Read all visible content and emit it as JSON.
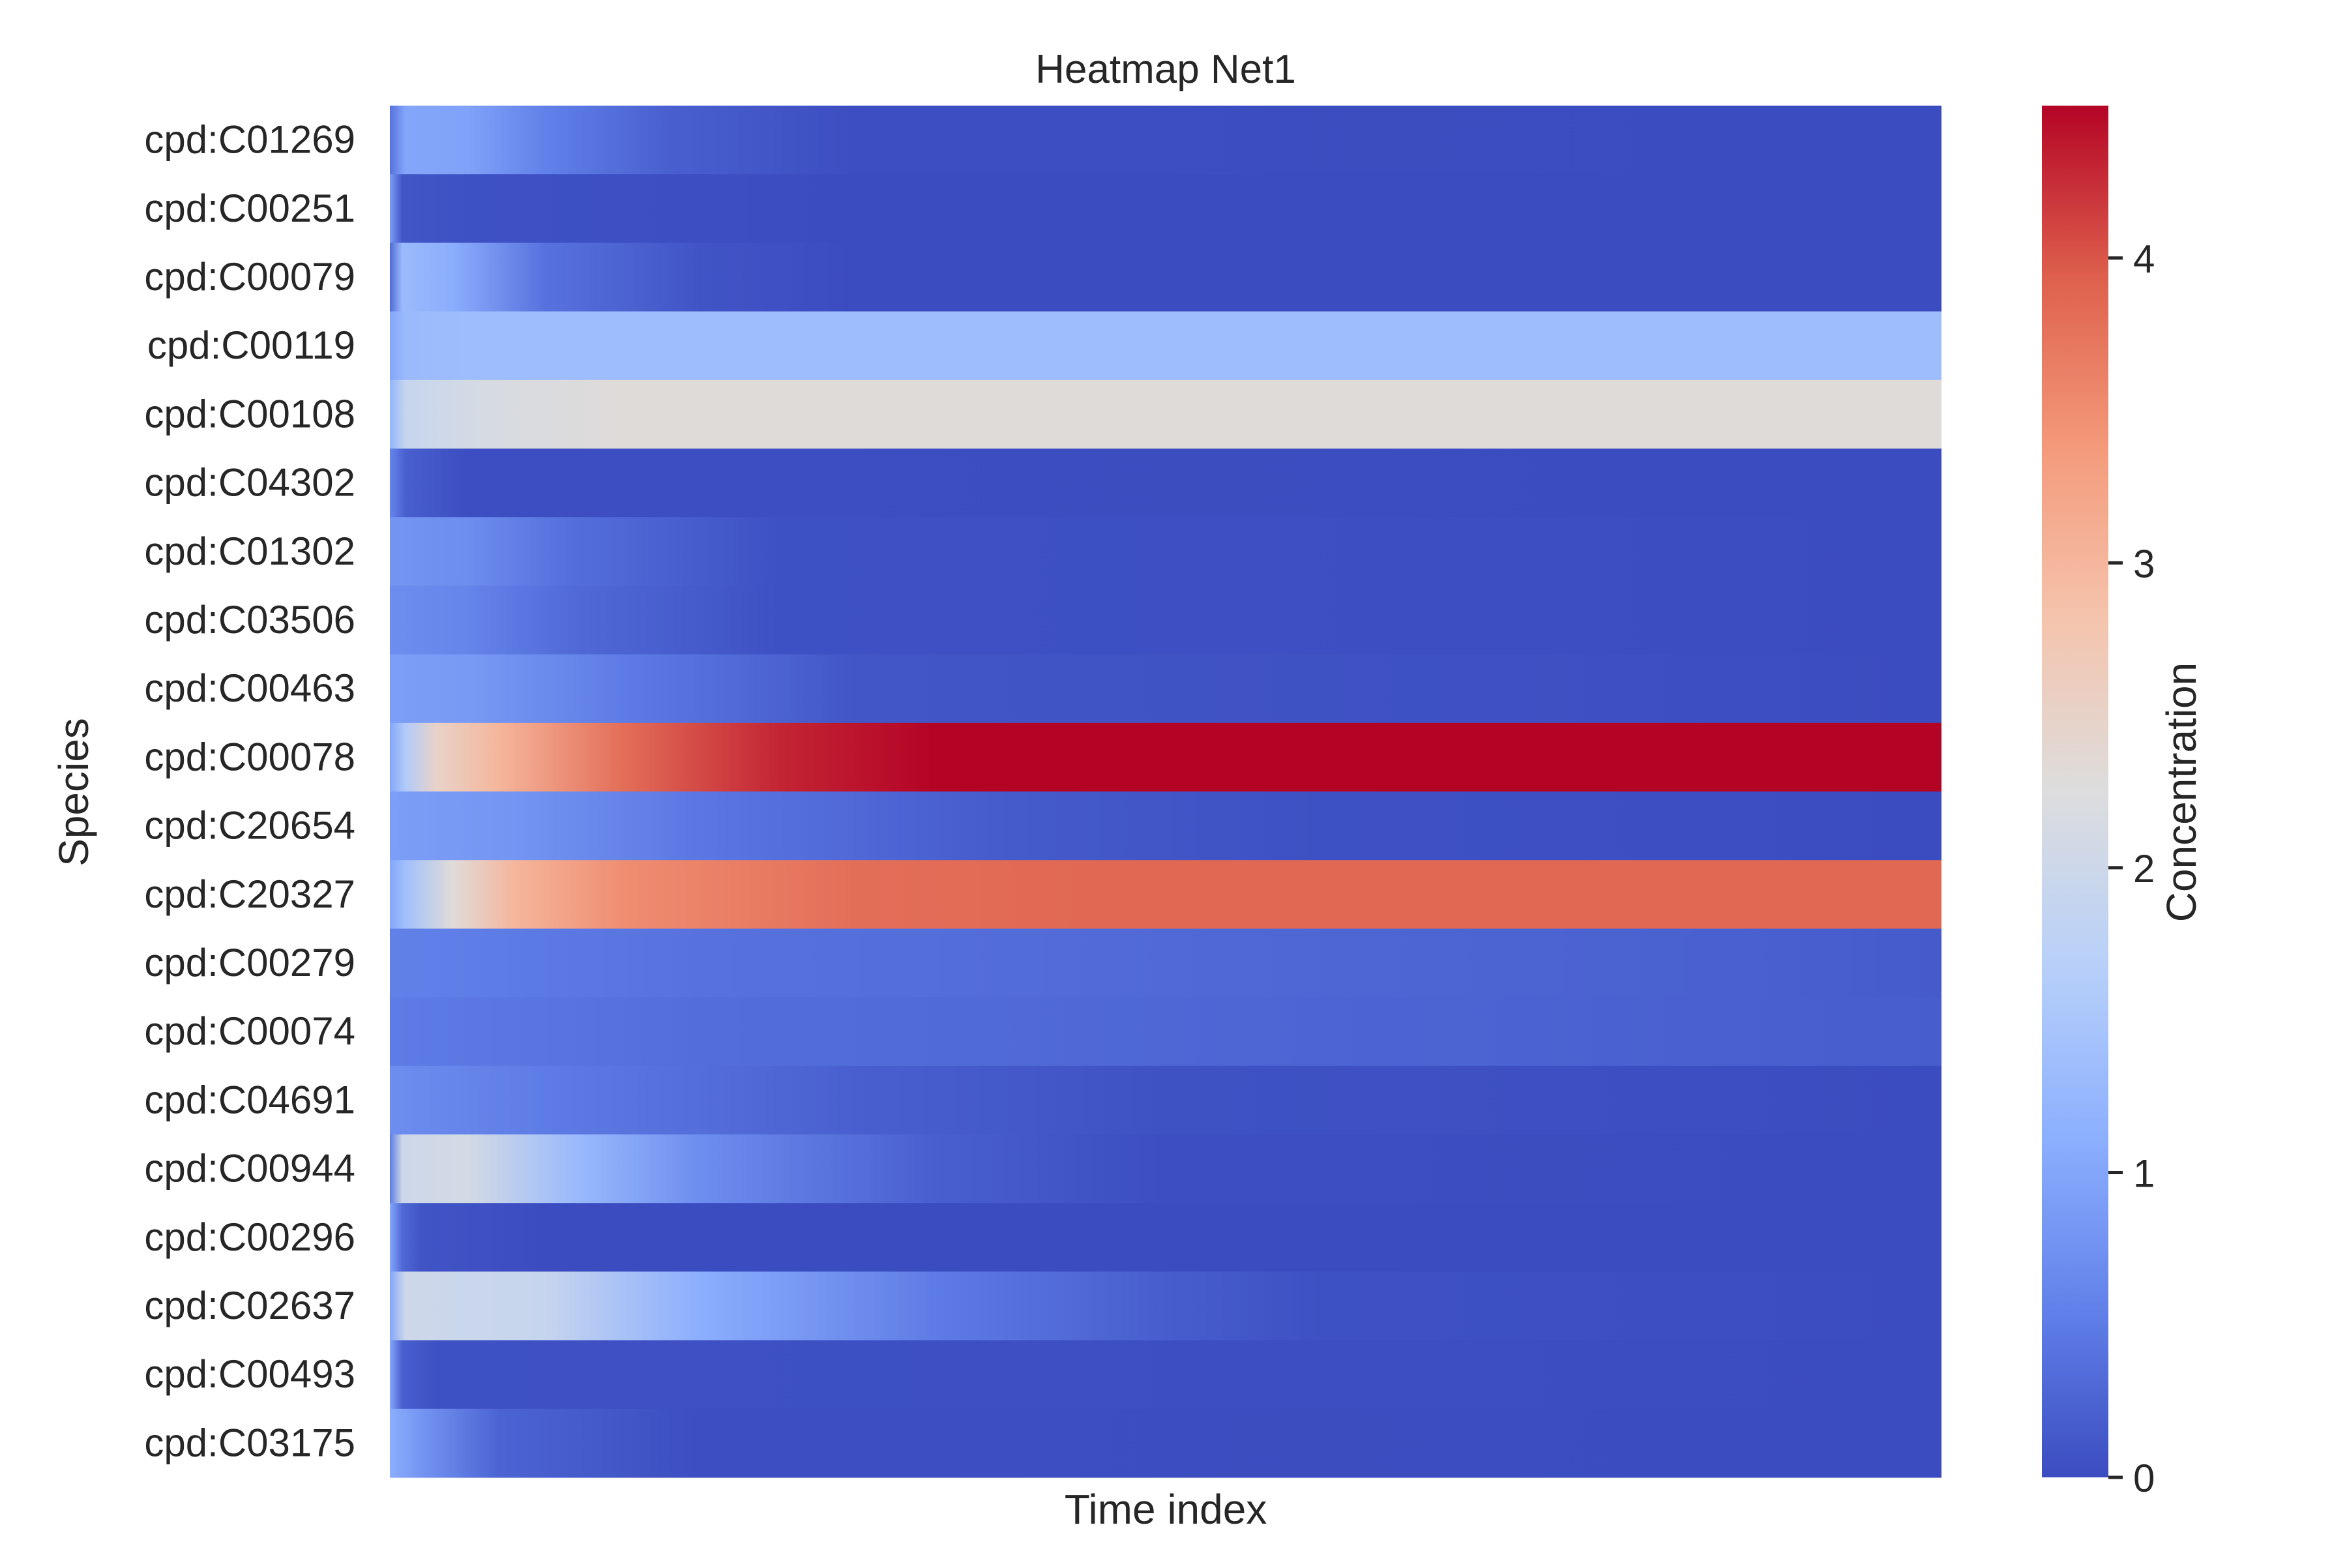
{
  "chart_data": {
    "type": "heatmap",
    "title": "Heatmap Net1",
    "xlabel": "Time index",
    "ylabel": "Species",
    "colorbar": {
      "label": "Concentration",
      "ticks": [
        0,
        1,
        2,
        3,
        4
      ],
      "vmin": 0,
      "vmax": 4.5,
      "colormap": "coolwarm"
    },
    "x_ticks_shown": false,
    "n_time_points": 100,
    "rows": [
      {
        "species": "cpd:C01269",
        "profile": [
          [
            0,
            0.4
          ],
          [
            0.01,
            1.0
          ],
          [
            0.05,
            0.95
          ],
          [
            0.1,
            0.55
          ],
          [
            0.18,
            0.2
          ],
          [
            0.3,
            0.02
          ],
          [
            1,
            0
          ]
        ]
      },
      {
        "species": "cpd:C00251",
        "profile": [
          [
            0,
            0.9
          ],
          [
            0.008,
            0.1
          ],
          [
            0.05,
            0.05
          ],
          [
            0.3,
            0
          ],
          [
            1,
            0
          ]
        ]
      },
      {
        "species": "cpd:C00079",
        "profile": [
          [
            0,
            0.3
          ],
          [
            0.008,
            1.3
          ],
          [
            0.04,
            1.1
          ],
          [
            0.1,
            0.4
          ],
          [
            0.2,
            0.08
          ],
          [
            0.3,
            0
          ],
          [
            1,
            0
          ]
        ]
      },
      {
        "species": "cpd:C00119",
        "profile": [
          [
            0,
            1.0
          ],
          [
            0.01,
            1.3
          ],
          [
            0.05,
            1.35
          ],
          [
            1,
            1.35
          ]
        ]
      },
      {
        "species": "cpd:C00108",
        "profile": [
          [
            0,
            1.2
          ],
          [
            0.01,
            1.9
          ],
          [
            0.06,
            2.15
          ],
          [
            0.15,
            2.3
          ],
          [
            1,
            2.3
          ]
        ]
      },
      {
        "species": "cpd:C04302",
        "profile": [
          [
            0,
            0.6
          ],
          [
            0.01,
            0.2
          ],
          [
            0.05,
            0.02
          ],
          [
            1,
            0
          ]
        ]
      },
      {
        "species": "cpd:C01302",
        "profile": [
          [
            0,
            0.8
          ],
          [
            0.05,
            0.7
          ],
          [
            0.12,
            0.35
          ],
          [
            0.25,
            0.05
          ],
          [
            1,
            0
          ]
        ]
      },
      {
        "species": "cpd:C03506",
        "profile": [
          [
            0,
            0.7
          ],
          [
            0.05,
            0.6
          ],
          [
            0.12,
            0.3
          ],
          [
            0.25,
            0.05
          ],
          [
            1,
            0
          ]
        ]
      },
      {
        "species": "cpd:C00463",
        "profile": [
          [
            0,
            0.9
          ],
          [
            0.05,
            0.85
          ],
          [
            0.15,
            0.5
          ],
          [
            0.3,
            0.1
          ],
          [
            1,
            0
          ]
        ]
      },
      {
        "species": "cpd:C00078",
        "profile": [
          [
            0,
            1.0
          ],
          [
            0.01,
            1.6
          ],
          [
            0.03,
            2.5
          ],
          [
            0.07,
            3.0
          ],
          [
            0.15,
            3.8
          ],
          [
            0.25,
            4.3
          ],
          [
            0.35,
            4.5
          ],
          [
            1,
            4.5
          ]
        ]
      },
      {
        "species": "cpd:C20654",
        "profile": [
          [
            0,
            0.9
          ],
          [
            0.08,
            0.8
          ],
          [
            0.2,
            0.45
          ],
          [
            0.4,
            0.15
          ],
          [
            0.6,
            0.05
          ],
          [
            1,
            0
          ]
        ]
      },
      {
        "species": "cpd:C20327",
        "profile": [
          [
            0,
            1.0
          ],
          [
            0.01,
            1.4
          ],
          [
            0.04,
            2.3
          ],
          [
            0.08,
            3.0
          ],
          [
            0.15,
            3.5
          ],
          [
            0.3,
            3.8
          ],
          [
            0.45,
            3.85
          ],
          [
            1,
            3.85
          ]
        ]
      },
      {
        "species": "cpd:C00279",
        "profile": [
          [
            0,
            0.55
          ],
          [
            0.2,
            0.4
          ],
          [
            0.5,
            0.3
          ],
          [
            0.9,
            0.2
          ],
          [
            1,
            0.15
          ]
        ]
      },
      {
        "species": "cpd:C00074",
        "profile": [
          [
            0,
            0.5
          ],
          [
            0.2,
            0.35
          ],
          [
            0.5,
            0.28
          ],
          [
            0.9,
            0.2
          ],
          [
            1,
            0.18
          ]
        ]
      },
      {
        "species": "cpd:C04691",
        "profile": [
          [
            0,
            0.7
          ],
          [
            0.1,
            0.5
          ],
          [
            0.3,
            0.2
          ],
          [
            0.5,
            0.06
          ],
          [
            1,
            0
          ]
        ]
      },
      {
        "species": "cpd:C00944",
        "profile": [
          [
            0,
            0.5
          ],
          [
            0.008,
            2.0
          ],
          [
            0.05,
            2.1
          ],
          [
            0.12,
            1.3
          ],
          [
            0.2,
            0.7
          ],
          [
            0.35,
            0.2
          ],
          [
            0.5,
            0.02
          ],
          [
            1,
            0
          ]
        ]
      },
      {
        "species": "cpd:C00296",
        "profile": [
          [
            0,
            1.0
          ],
          [
            0.008,
            0.3
          ],
          [
            0.02,
            0.08
          ],
          [
            0.1,
            0
          ],
          [
            1,
            0
          ]
        ]
      },
      {
        "species": "cpd:C02637",
        "profile": [
          [
            0,
            1.0
          ],
          [
            0.01,
            2.0
          ],
          [
            0.1,
            1.9
          ],
          [
            0.2,
            1.1
          ],
          [
            0.35,
            0.5
          ],
          [
            0.5,
            0.18
          ],
          [
            0.6,
            0.05
          ],
          [
            1,
            0
          ]
        ]
      },
      {
        "species": "cpd:C00493",
        "profile": [
          [
            0,
            1.0
          ],
          [
            0.008,
            0.2
          ],
          [
            0.03,
            0.05
          ],
          [
            1,
            0
          ]
        ]
      },
      {
        "species": "cpd:C03175",
        "profile": [
          [
            0,
            1.1
          ],
          [
            0.02,
            0.8
          ],
          [
            0.07,
            0.25
          ],
          [
            0.2,
            0.02
          ],
          [
            1,
            0
          ]
        ]
      }
    ]
  }
}
